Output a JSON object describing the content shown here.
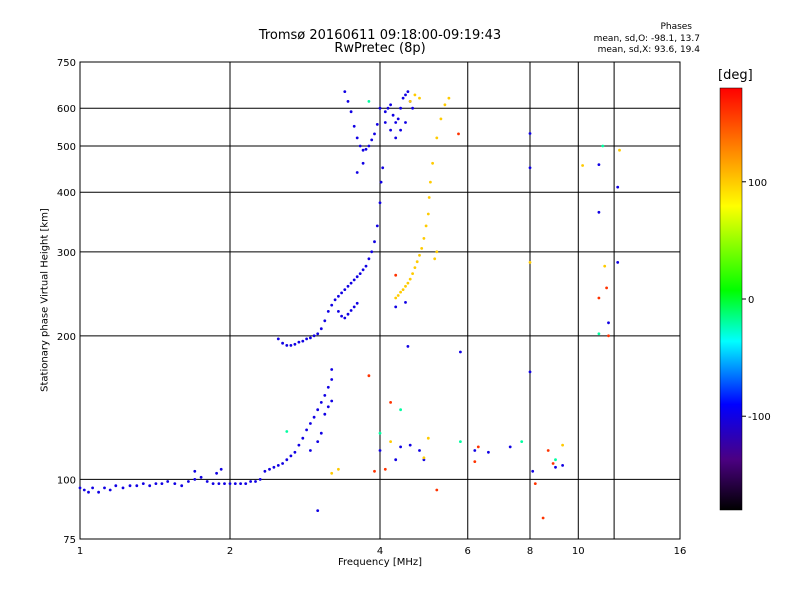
{
  "chart_data": {
    "type": "scatter",
    "title": "Tromsø 20160611 09:18:00-09:19:43",
    "subtitle": "RwPretec (8p)",
    "xlabel": "Frequency [MHz]",
    "ylabel": "Stationary phase Virtual Height [km]",
    "x_scale": "log",
    "y_scale": "log",
    "xlim": [
      1,
      16
    ],
    "ylim": [
      75,
      750
    ],
    "x_ticks": [
      1,
      2,
      4,
      6,
      8,
      10,
      16
    ],
    "y_ticks": [
      75,
      100,
      200,
      300,
      400,
      500,
      600,
      750
    ],
    "grid": true,
    "stats": {
      "heading": "Phases",
      "o_mode": "mean, sd,O: -98.1, 13.7",
      "x_mode": "mean, sd,X:  93.6, 19.4"
    },
    "colorbar": {
      "label": "[deg]",
      "range": [
        -180,
        180
      ],
      "ticks": [
        -100,
        0,
        100
      ],
      "tick_labels": [
        "-100",
        "0",
        "100"
      ]
    },
    "series": [
      {
        "mode": "O",
        "phase": -100,
        "points": [
          [
            1.0,
            96
          ],
          [
            1.02,
            95
          ],
          [
            1.04,
            94
          ],
          [
            1.06,
            96
          ],
          [
            1.09,
            94
          ],
          [
            1.12,
            96
          ],
          [
            1.15,
            95
          ],
          [
            1.18,
            97
          ],
          [
            1.22,
            96
          ],
          [
            1.26,
            97
          ],
          [
            1.3,
            97
          ],
          [
            1.34,
            98
          ],
          [
            1.38,
            97
          ],
          [
            1.42,
            98
          ],
          [
            1.46,
            98
          ],
          [
            1.5,
            99
          ],
          [
            1.55,
            98
          ],
          [
            1.6,
            97
          ],
          [
            1.65,
            99
          ],
          [
            1.7,
            100
          ],
          [
            1.75,
            101
          ],
          [
            1.8,
            99
          ],
          [
            1.85,
            98
          ],
          [
            1.9,
            98
          ],
          [
            1.95,
            98
          ],
          [
            2.0,
            98
          ],
          [
            2.05,
            98
          ],
          [
            2.1,
            98
          ],
          [
            2.15,
            98
          ],
          [
            2.2,
            99
          ],
          [
            2.25,
            99
          ],
          [
            2.3,
            100
          ],
          [
            2.35,
            104
          ],
          [
            2.4,
            105
          ],
          [
            2.45,
            106
          ],
          [
            2.5,
            107
          ],
          [
            2.55,
            108
          ],
          [
            2.6,
            110
          ],
          [
            2.65,
            112
          ],
          [
            2.7,
            114
          ],
          [
            2.75,
            118
          ],
          [
            2.8,
            122
          ],
          [
            2.85,
            127
          ],
          [
            2.9,
            131
          ],
          [
            2.95,
            135
          ],
          [
            3.0,
            140
          ],
          [
            3.05,
            145
          ],
          [
            3.1,
            150
          ],
          [
            3.15,
            156
          ],
          [
            3.2,
            162
          ],
          [
            3.1,
            137
          ],
          [
            3.15,
            142
          ],
          [
            3.2,
            146
          ],
          [
            2.5,
            197
          ],
          [
            2.55,
            193
          ],
          [
            2.6,
            191
          ],
          [
            2.65,
            191
          ],
          [
            2.7,
            192
          ],
          [
            2.75,
            194
          ],
          [
            2.8,
            195
          ],
          [
            2.85,
            197
          ],
          [
            2.9,
            198
          ],
          [
            2.95,
            200
          ],
          [
            3.0,
            202
          ],
          [
            3.05,
            207
          ],
          [
            3.1,
            215
          ],
          [
            3.15,
            225
          ],
          [
            3.2,
            232
          ],
          [
            3.25,
            238
          ],
          [
            3.3,
            242
          ],
          [
            3.35,
            246
          ],
          [
            3.4,
            250
          ],
          [
            3.45,
            254
          ],
          [
            3.5,
            258
          ],
          [
            3.55,
            262
          ],
          [
            3.6,
            266
          ],
          [
            3.65,
            270
          ],
          [
            3.7,
            275
          ],
          [
            3.75,
            280
          ],
          [
            3.8,
            290
          ],
          [
            3.85,
            300
          ],
          [
            3.9,
            315
          ],
          [
            3.95,
            340
          ],
          [
            4.0,
            380
          ],
          [
            4.02,
            420
          ],
          [
            4.05,
            450
          ],
          [
            3.3,
            225
          ],
          [
            3.35,
            220
          ],
          [
            3.4,
            218
          ],
          [
            3.45,
            222
          ],
          [
            3.5,
            226
          ],
          [
            3.55,
            230
          ],
          [
            3.6,
            234
          ],
          [
            3.4,
            650
          ],
          [
            3.45,
            620
          ],
          [
            3.5,
            590
          ],
          [
            3.55,
            550
          ],
          [
            3.6,
            520
          ],
          [
            3.65,
            500
          ],
          [
            3.7,
            490
          ],
          [
            3.75,
            492
          ],
          [
            3.8,
            500
          ],
          [
            3.85,
            515
          ],
          [
            3.9,
            530
          ],
          [
            3.95,
            555
          ],
          [
            4.1,
            590
          ],
          [
            4.15,
            600
          ],
          [
            4.2,
            610
          ],
          [
            4.25,
            580
          ],
          [
            4.3,
            560
          ],
          [
            4.35,
            570
          ],
          [
            4.4,
            600
          ],
          [
            4.45,
            630
          ],
          [
            4.5,
            640
          ],
          [
            4.55,
            650
          ],
          [
            4.6,
            620
          ],
          [
            4.65,
            600
          ],
          [
            4.1,
            560
          ],
          [
            4.2,
            540
          ],
          [
            4.3,
            520
          ],
          [
            4.4,
            540
          ],
          [
            4.5,
            560
          ],
          [
            3.6,
            440
          ],
          [
            3.7,
            460
          ],
          [
            4.0,
            600
          ],
          [
            3.0,
            120
          ],
          [
            3.05,
            125
          ],
          [
            2.9,
            115
          ],
          [
            1.7,
            104
          ],
          [
            1.88,
            103
          ],
          [
            1.92,
            105
          ],
          [
            3.0,
            86
          ],
          [
            3.2,
            170
          ],
          [
            4.5,
            235
          ],
          [
            4.3,
            230
          ],
          [
            4.55,
            190
          ],
          [
            4.0,
            115
          ],
          [
            4.3,
            110
          ],
          [
            4.4,
            117
          ],
          [
            4.6,
            118
          ],
          [
            4.8,
            115
          ],
          [
            4.9,
            110
          ],
          [
            5.8,
            185
          ],
          [
            6.2,
            115
          ],
          [
            6.6,
            114
          ],
          [
            7.3,
            117
          ],
          [
            8.0,
            531
          ],
          [
            8.0,
            450
          ],
          [
            8.0,
            168
          ],
          [
            8.1,
            104
          ],
          [
            9.0,
            106
          ],
          [
            9.3,
            107
          ],
          [
            11.0,
            457
          ],
          [
            11.0,
            363
          ],
          [
            11.5,
            213
          ],
          [
            12.0,
            410
          ],
          [
            12.0,
            285
          ]
        ]
      },
      {
        "mode": "X",
        "phase": 100,
        "points": [
          [
            4.3,
            240
          ],
          [
            4.35,
            243
          ],
          [
            4.4,
            247
          ],
          [
            4.45,
            250
          ],
          [
            4.5,
            254
          ],
          [
            4.55,
            258
          ],
          [
            4.6,
            263
          ],
          [
            4.65,
            270
          ],
          [
            4.7,
            278
          ],
          [
            4.75,
            286
          ],
          [
            4.8,
            295
          ],
          [
            4.85,
            305
          ],
          [
            4.9,
            320
          ],
          [
            4.95,
            340
          ],
          [
            5.0,
            360
          ],
          [
            5.02,
            390
          ],
          [
            5.05,
            420
          ],
          [
            5.1,
            460
          ],
          [
            5.2,
            520
          ],
          [
            5.3,
            570
          ],
          [
            5.4,
            610
          ],
          [
            5.5,
            630
          ],
          [
            4.6,
            620
          ],
          [
            4.7,
            640
          ],
          [
            4.8,
            630
          ],
          [
            5.2,
            300
          ],
          [
            5.15,
            290
          ],
          [
            5.0,
            122
          ],
          [
            4.9,
            111
          ],
          [
            4.2,
            120
          ],
          [
            3.3,
            105
          ],
          [
            3.2,
            103
          ],
          [
            11.3,
            280
          ],
          [
            12.1,
            490
          ],
          [
            10.2,
            455
          ],
          [
            8.0,
            285
          ],
          [
            9.3,
            118
          ]
        ]
      },
      {
        "mode": "other",
        "phase": 160,
        "points": [
          [
            5.75,
            530
          ],
          [
            4.3,
            268
          ],
          [
            3.8,
            165
          ],
          [
            3.9,
            104
          ],
          [
            4.1,
            105
          ],
          [
            5.2,
            95
          ],
          [
            6.2,
            109
          ],
          [
            6.3,
            117
          ],
          [
            8.7,
            115
          ],
          [
            11.0,
            240
          ],
          [
            11.4,
            252
          ],
          [
            11.5,
            200
          ],
          [
            8.2,
            98
          ],
          [
            8.5,
            83
          ],
          [
            8.9,
            108
          ],
          [
            4.2,
            145
          ]
        ]
      },
      {
        "mode": "cyan",
        "phase": -20,
        "points": [
          [
            4.0,
            125
          ],
          [
            4.4,
            140
          ],
          [
            5.8,
            120
          ],
          [
            3.8,
            620
          ],
          [
            11.2,
            500
          ],
          [
            11.0,
            202
          ],
          [
            9.0,
            110
          ],
          [
            7.7,
            120
          ],
          [
            2.6,
            126
          ]
        ]
      }
    ]
  }
}
